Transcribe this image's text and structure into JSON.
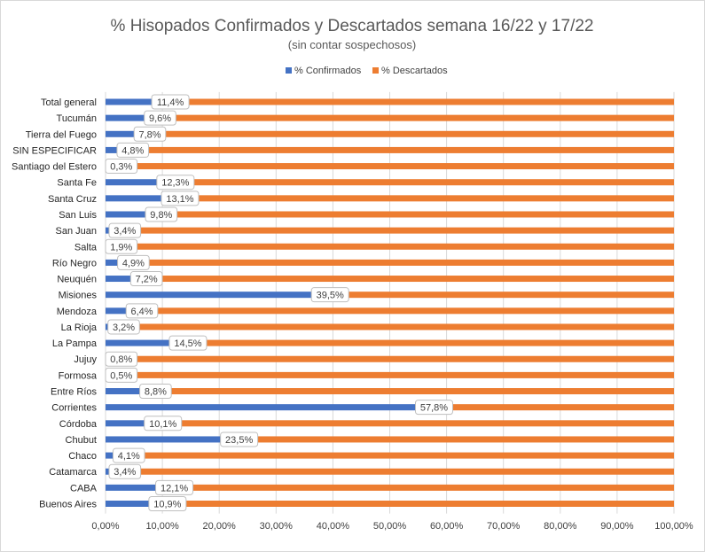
{
  "chart_data": {
    "type": "bar",
    "orientation": "horizontal",
    "stacked": true,
    "title": "% Hisopados Confirmados y Descartados semana 16/22 y 17/22",
    "subtitle": "(sin contar sospechosos)",
    "legend_position": "top",
    "grid": true,
    "xlim": [
      0,
      100
    ],
    "x_ticks": [
      0,
      10,
      20,
      30,
      40,
      50,
      60,
      70,
      80,
      90,
      100
    ],
    "x_tick_labels": [
      "0,00%",
      "10,00%",
      "20,00%",
      "30,00%",
      "40,00%",
      "50,00%",
      "60,00%",
      "70,00%",
      "80,00%",
      "90,00%",
      "100,00%"
    ],
    "categories": [
      "Total general",
      "Tucumán",
      "Tierra del Fuego",
      "SIN ESPECIFICAR",
      "Santiago del Estero",
      "Santa Fe",
      "Santa Cruz",
      "San Luis",
      "San Juan",
      "Salta",
      "Río Negro",
      "Neuquén",
      "Misiones",
      "Mendoza",
      "La Rioja",
      "La Pampa",
      "Jujuy",
      "Formosa",
      "Entre Ríos",
      "Corrientes",
      "Córdoba",
      "Chubut",
      "Chaco",
      "Catamarca",
      "CABA",
      "Buenos Aires"
    ],
    "series": [
      {
        "name": "% Confirmados",
        "color": "#4472c4",
        "values": [
          11.4,
          9.6,
          7.8,
          4.8,
          0.3,
          12.3,
          13.1,
          9.8,
          3.4,
          1.9,
          4.9,
          7.2,
          39.5,
          6.4,
          3.2,
          14.5,
          0.8,
          0.5,
          8.8,
          57.8,
          10.1,
          23.5,
          4.1,
          3.4,
          12.1,
          10.9
        ],
        "data_labels": [
          "11,4%",
          "9,6%",
          "7,8%",
          "4,8%",
          "0,3%",
          "12,3%",
          "13,1%",
          "9,8%",
          "3,4%",
          "1,9%",
          "4,9%",
          "7,2%",
          "39,5%",
          "6,4%",
          "3,2%",
          "14,5%",
          "0,8%",
          "0,5%",
          "8,8%",
          "57,8%",
          "10,1%",
          "23,5%",
          "4,1%",
          "3,4%",
          "12,1%",
          "10,9%"
        ]
      },
      {
        "name": "% Descartados",
        "color": "#ed7d31",
        "values": [
          88.6,
          90.4,
          92.2,
          95.2,
          99.7,
          87.7,
          86.9,
          90.2,
          96.6,
          98.1,
          95.1,
          92.8,
          60.5,
          93.6,
          96.8,
          85.5,
          99.2,
          99.5,
          91.2,
          42.2,
          89.9,
          76.5,
          95.9,
          96.6,
          87.9,
          89.1
        ]
      }
    ]
  }
}
